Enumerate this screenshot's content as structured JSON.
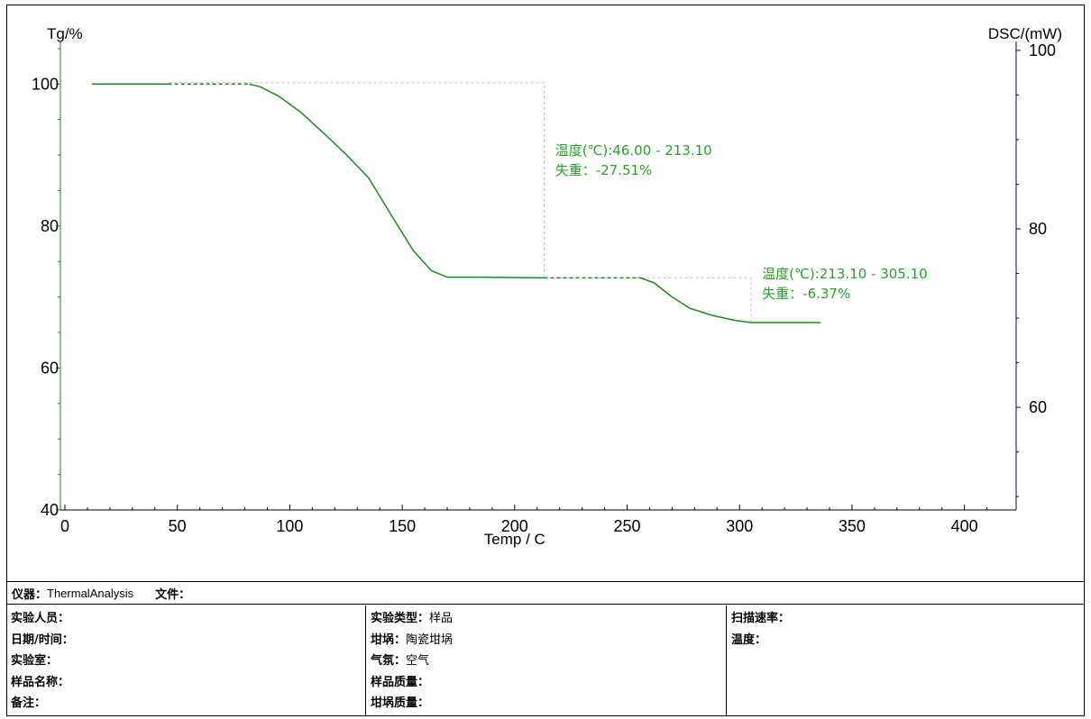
{
  "chart_data": {
    "type": "line",
    "y_left_label": "Tg/%",
    "y_right_label": "DSC/(mW)",
    "xlabel": "Temp / C",
    "xlim": [
      -2,
      423
    ],
    "ylim_left": [
      40,
      106
    ],
    "ylim_right": [
      48.5,
      101
    ],
    "x_ticks": [
      0,
      50,
      100,
      150,
      200,
      250,
      300,
      350,
      400
    ],
    "y_left_ticks": [
      40,
      60,
      80,
      100
    ],
    "y_right_ticks": [
      60,
      80,
      100
    ],
    "grid": false,
    "colors": {
      "tg": "#1a8a1a",
      "annotation": "#2aa02a",
      "marker": "#f0a0f0",
      "right_axis": "#00008b",
      "left_axis": "#1a8a1a"
    },
    "series": [
      {
        "points": [
          [
            12,
            100
          ],
          [
            46,
            100
          ],
          [
            82,
            100
          ],
          [
            87,
            99.6
          ],
          [
            95,
            98.3
          ],
          [
            105,
            96.0
          ],
          [
            115,
            93.1
          ],
          [
            125,
            90.1
          ],
          [
            135,
            86.8
          ],
          [
            145,
            81.6
          ],
          [
            155,
            76.5
          ],
          [
            163,
            73.7
          ],
          [
            170,
            72.8
          ],
          [
            185,
            72.8
          ],
          [
            213.1,
            72.7
          ],
          [
            256,
            72.7
          ],
          [
            262,
            72.0
          ],
          [
            270,
            70.0
          ],
          [
            278,
            68.4
          ],
          [
            288,
            67.4
          ],
          [
            298,
            66.7
          ],
          [
            305.1,
            66.4
          ],
          [
            336,
            66.4
          ]
        ],
        "dashed_ranges": [
          [
            46,
            82
          ],
          [
            213.1,
            256
          ]
        ]
      }
    ],
    "annotations": [
      {
        "temp_range": [
          46.0,
          213.1
        ],
        "weight_from": 100.2,
        "weight_to": 72.7,
        "label_x": 218,
        "label_y_top": 90.0,
        "line1": "温度(℃):46.00 - 213.10",
        "line2": "失重：-27.51%"
      },
      {
        "temp_range": [
          213.1,
          305.1
        ],
        "weight_from": 72.7,
        "weight_to": 66.4,
        "label_x": 310,
        "label_y_top": 72.6,
        "line1": "温度(℃):213.10 - 305.10",
        "line2": "失重：-6.37%"
      }
    ]
  },
  "info": {
    "instrument_label": "仪器：",
    "instrument_value": "ThermalAnalysis",
    "file_label": "文件：",
    "file_value": "",
    "col1": [
      {
        "k": "实验人员：",
        "v": ""
      },
      {
        "k": "日期/时间：",
        "v": ""
      },
      {
        "k": "实验室：",
        "v": ""
      },
      {
        "k": "样品名称：",
        "v": ""
      },
      {
        "k": "备注：",
        "v": ""
      }
    ],
    "col2": [
      {
        "k": "实验类型：",
        "v": "样品"
      },
      {
        "k": "坩埚：",
        "v": "陶瓷坩埚"
      },
      {
        "k": "气氛：",
        "v": "空气"
      },
      {
        "k": "样品质量：",
        "v": ""
      },
      {
        "k": "坩埚质量：",
        "v": ""
      }
    ],
    "col3": [
      {
        "k": "扫描速率：",
        "v": ""
      },
      {
        "k": "温度：",
        "v": ""
      }
    ]
  }
}
